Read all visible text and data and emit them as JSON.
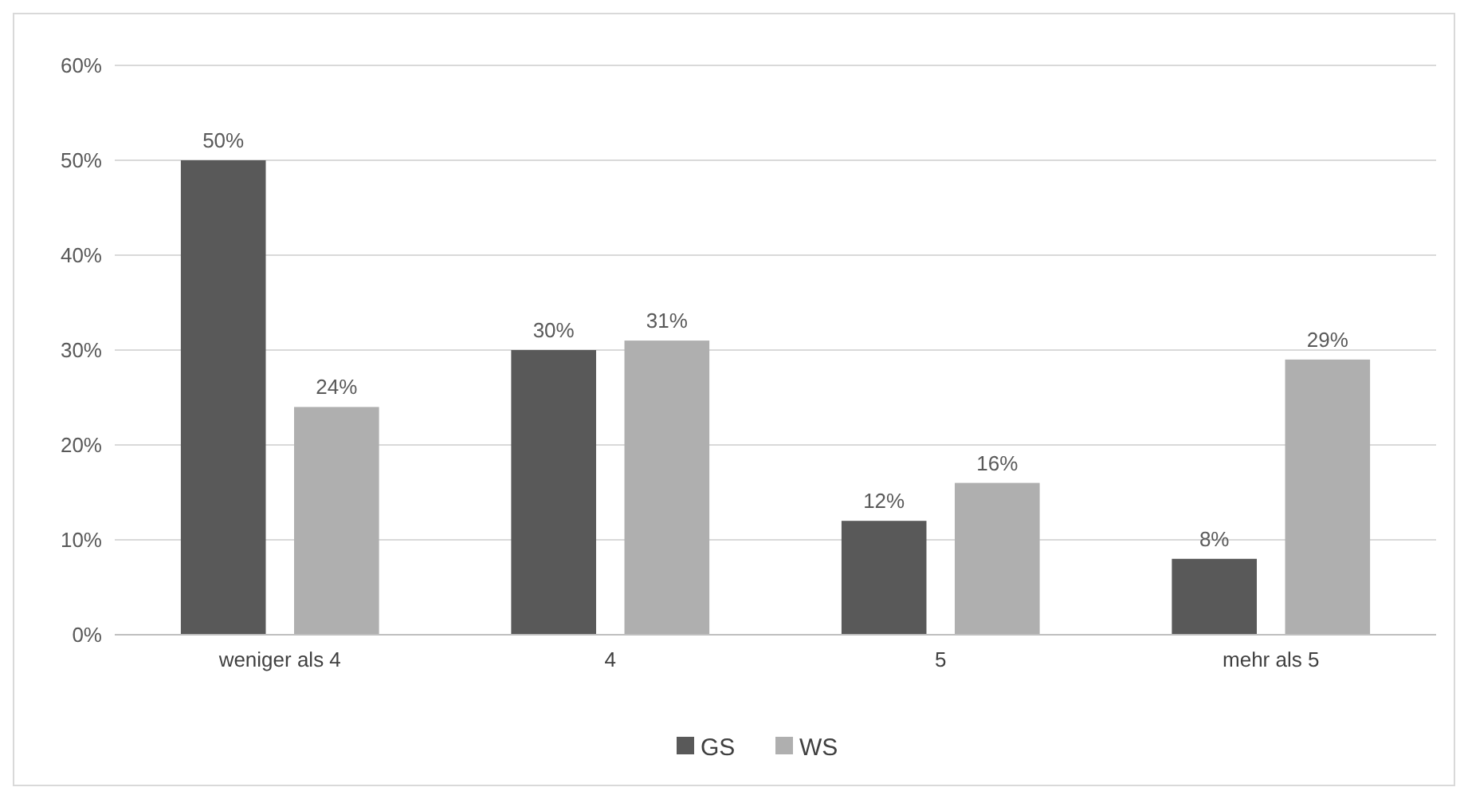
{
  "chart_data": {
    "type": "bar",
    "categories": [
      "weniger als 4",
      "4",
      "5",
      "mehr als 5"
    ],
    "series": [
      {
        "name": "GS",
        "color": "#595959",
        "values": [
          50,
          30,
          12,
          8
        ],
        "value_labels": [
          "50%",
          "30%",
          "12%",
          "8%"
        ]
      },
      {
        "name": "WS",
        "color": "#afafaf",
        "values": [
          24,
          31,
          16,
          29
        ],
        "value_labels": [
          "24%",
          "31%",
          "16%",
          "29%"
        ]
      }
    ],
    "ylim": [
      0,
      60
    ],
    "yticks": [
      {
        "value": 0,
        "label": "0%"
      },
      {
        "value": 10,
        "label": "10%"
      },
      {
        "value": 20,
        "label": "20%"
      },
      {
        "value": 30,
        "label": "30%"
      },
      {
        "value": 40,
        "label": "40%"
      },
      {
        "value": 50,
        "label": "50%"
      },
      {
        "value": 60,
        "label": "60%"
      }
    ],
    "grid": "y",
    "legend": "bottom"
  }
}
